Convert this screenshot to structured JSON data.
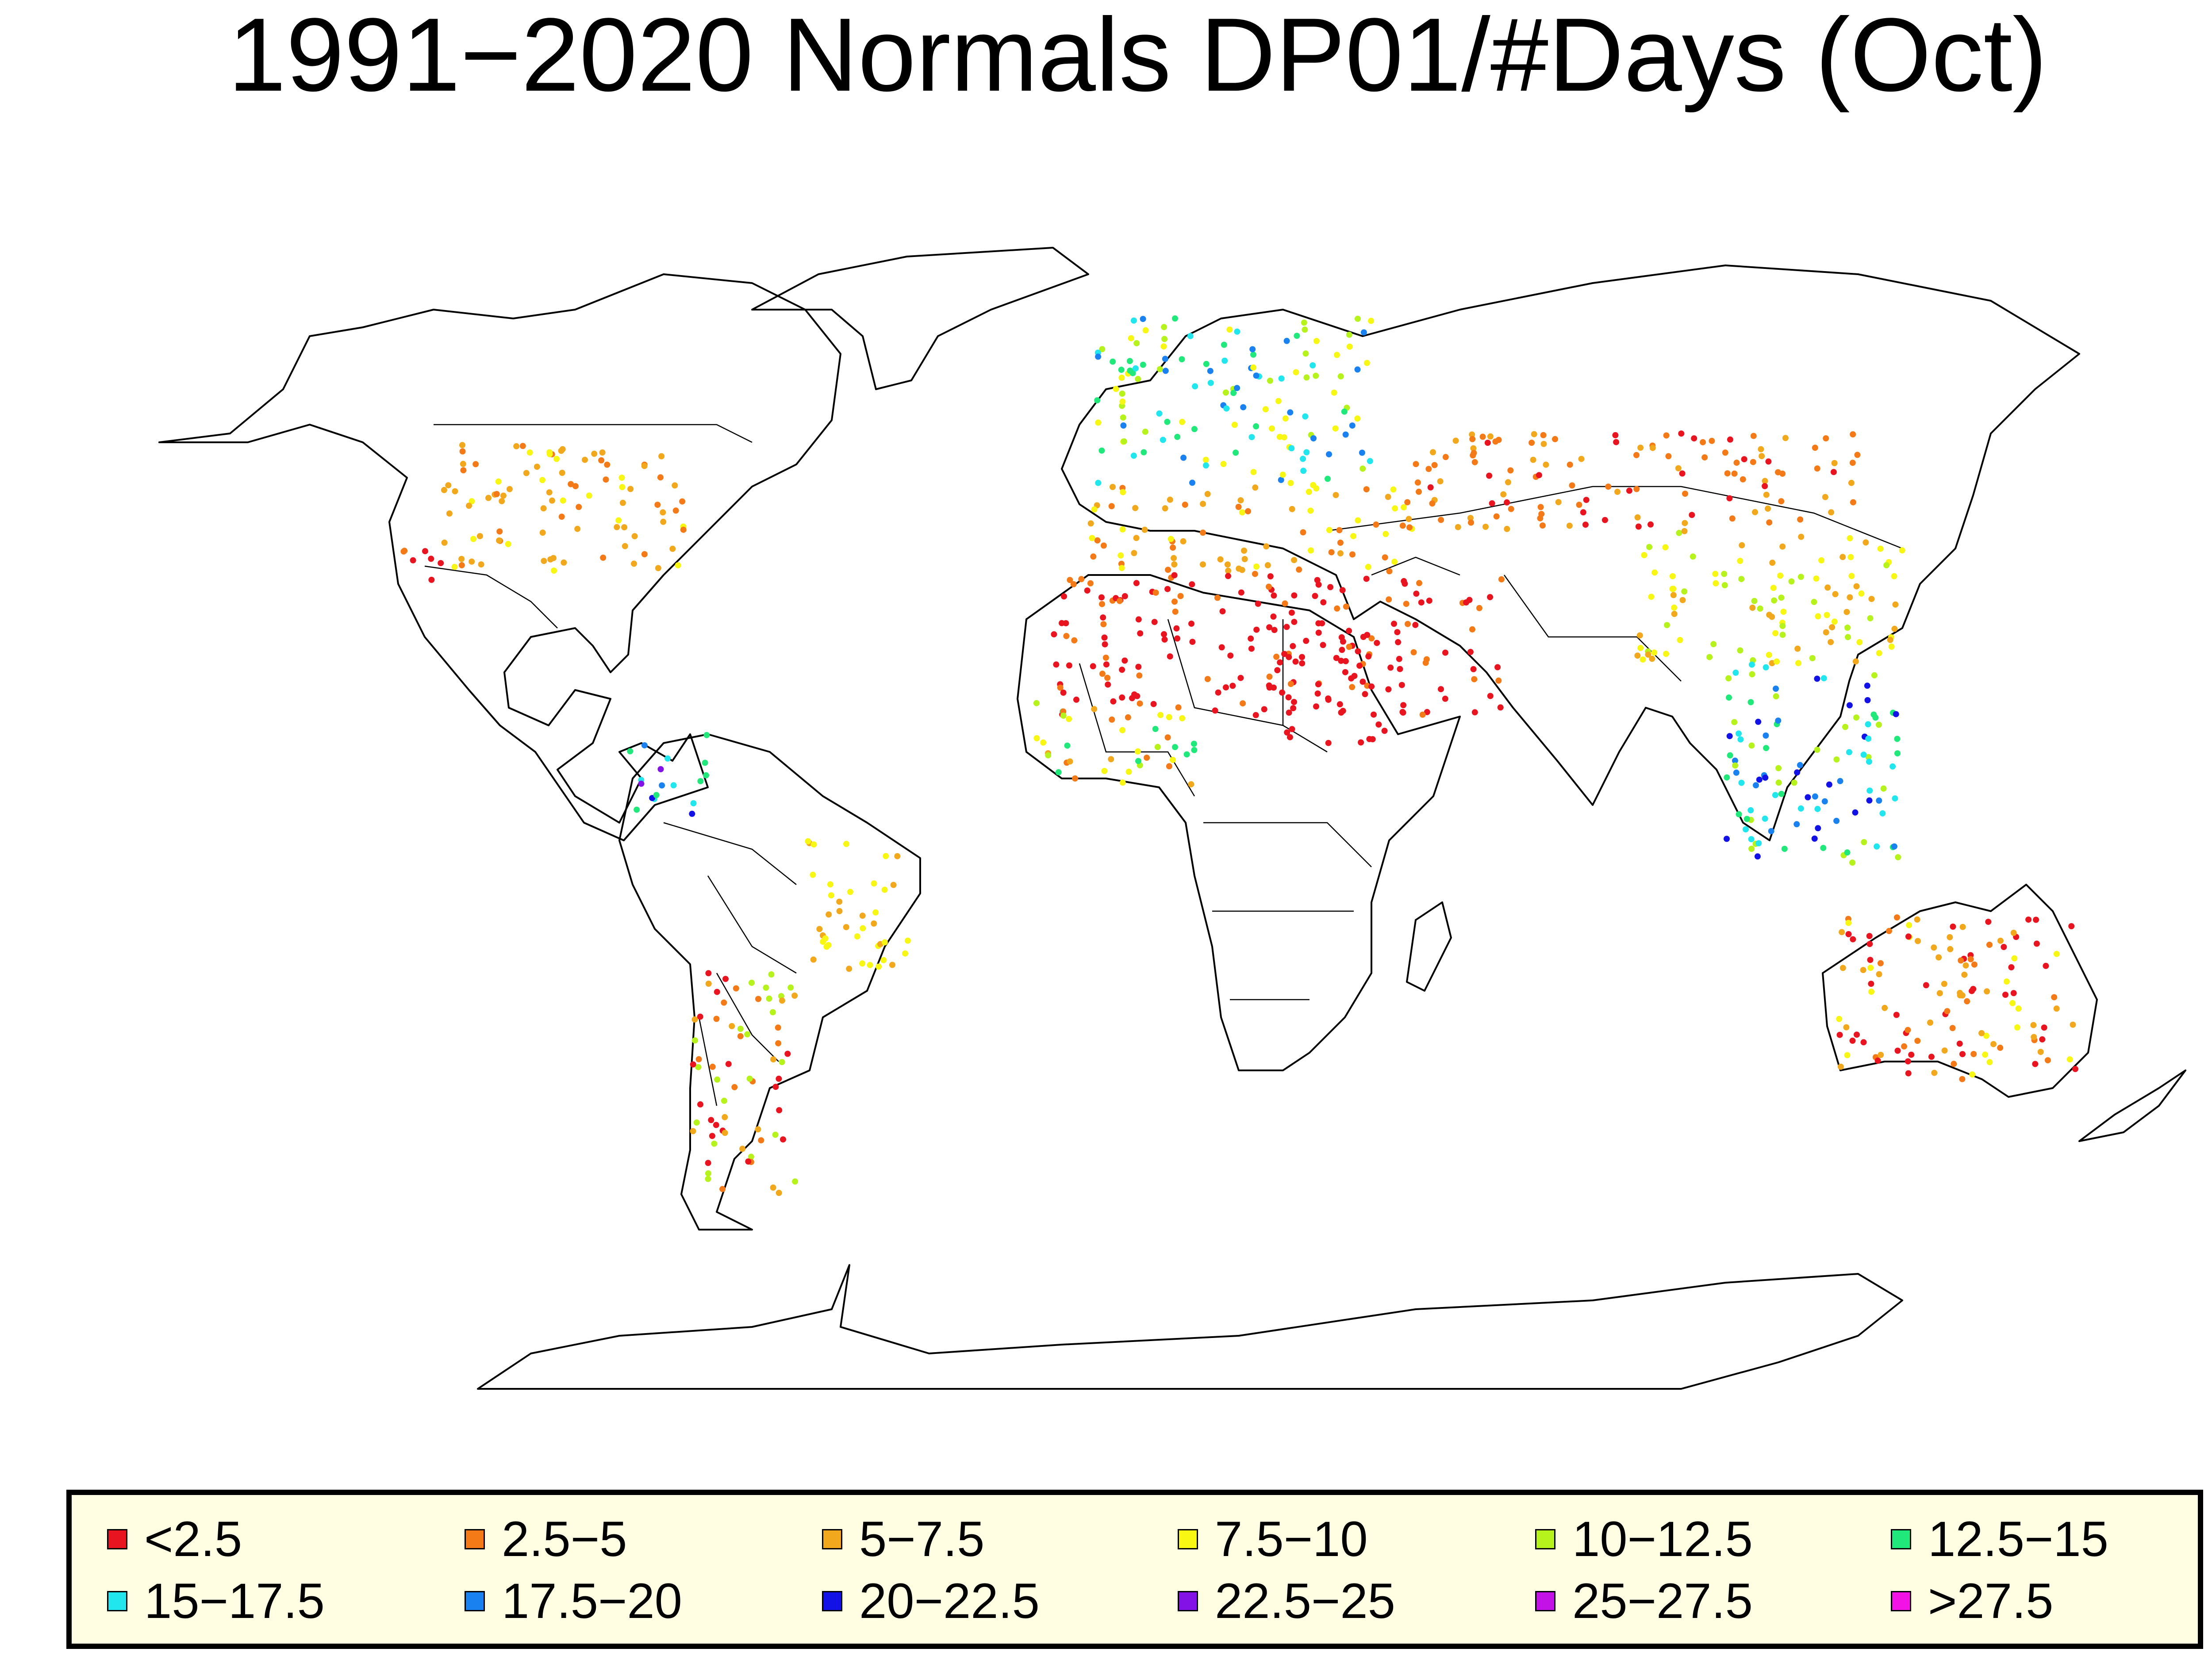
{
  "title": "1991−2020 Normals DP01/#Days (Oct)",
  "legend": [
    {
      "label": "<2.5",
      "color": "#e8141f"
    },
    {
      "label": "2.5−5",
      "color": "#f47a18"
    },
    {
      "label": "5−7.5",
      "color": "#f2a81c"
    },
    {
      "label": "7.5−10",
      "color": "#f7f713"
    },
    {
      "label": "10−12.5",
      "color": "#b6f21c"
    },
    {
      "label": "12.5−15",
      "color": "#21e87a"
    },
    {
      "label": "15−17.5",
      "color": "#22e6ee"
    },
    {
      "label": "17.5−20",
      "color": "#1a82f0"
    },
    {
      "label": "20−22.5",
      "color": "#1212e6"
    },
    {
      "label": "22.5−25",
      "color": "#8212e6"
    },
    {
      "label": "25−27.5",
      "color": "#c212e6"
    },
    {
      "label": ">27.5",
      "color": "#f212e6"
    }
  ]
}
